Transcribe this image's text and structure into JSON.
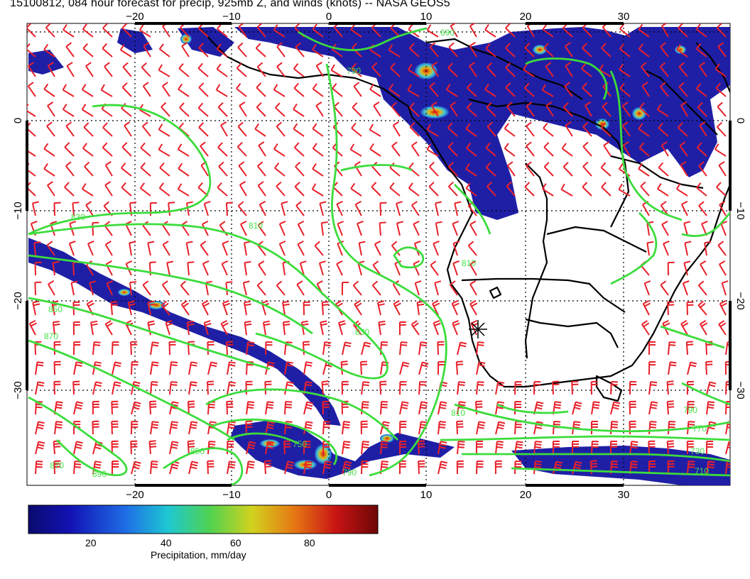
{
  "title": "15100812, 084 hour forecast for precip, 925mb Z, and winds (knots) -- NASA GEOS5",
  "map": {
    "lon_ticks_top": [
      "−20",
      "−10",
      "0",
      "10",
      "20",
      "30"
    ],
    "lon_ticks_bottom": [
      "−20",
      "−10",
      "0",
      "10",
      "20",
      "30"
    ],
    "lat_ticks_left": [
      "0",
      "−10",
      "−20",
      "−30"
    ],
    "lat_ticks_right": [
      "0",
      "−10",
      "−20",
      "−30"
    ],
    "contour_labels": [
      "790",
      "810",
      "830",
      "850",
      "870",
      "810",
      "830",
      "750",
      "790",
      "770",
      "730",
      "710",
      "790",
      "810",
      "850",
      "870",
      "890",
      "690"
    ],
    "colors": {
      "contour": "#3cdc3c",
      "barbs": "#e8202a",
      "coast": "#000000",
      "precip_low": "#1a1a96"
    }
  },
  "colorbar": {
    "ticks": [
      "20",
      "40",
      "60",
      "80"
    ],
    "label": "Precipitation, mm/day",
    "colors": [
      "#0a0a6e",
      "#1a1aa8",
      "#1e6ee6",
      "#1ec8d2",
      "#46d246",
      "#d2d21e",
      "#e67814",
      "#c81414",
      "#7a0a0a"
    ]
  }
}
